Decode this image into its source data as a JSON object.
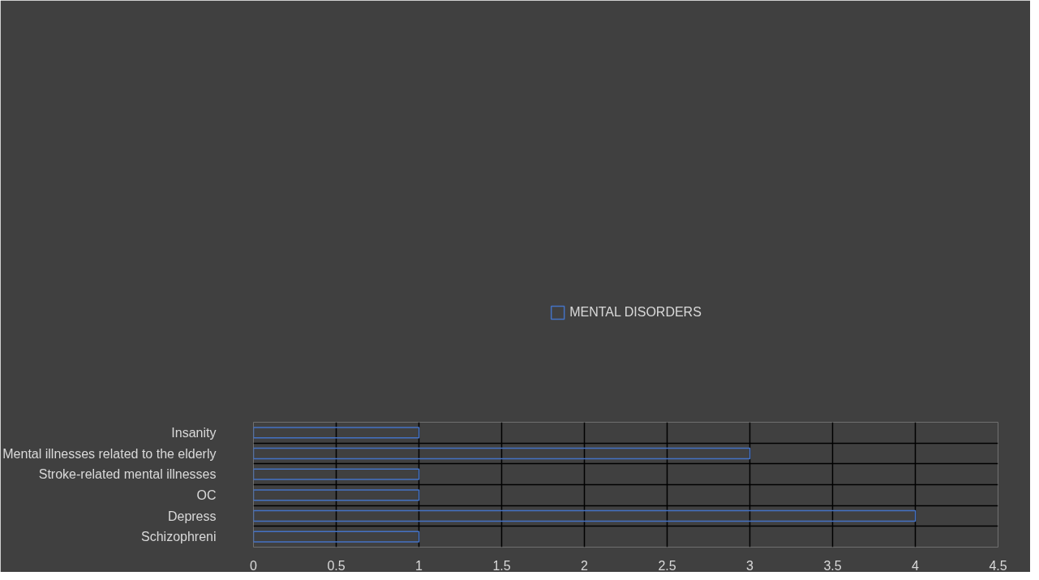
{
  "chart_data": {
    "type": "bar",
    "orientation": "horizontal",
    "categories": [
      "Insanity",
      "Mental illnesses related to the elderly",
      "Stroke-related mental illnesses",
      "OC",
      "Depress",
      "Schizophreni"
    ],
    "series": [
      {
        "name": "MENTAL DISORDERS",
        "color": "#4472c4",
        "values": [
          1,
          3,
          1,
          1,
          4,
          1
        ]
      }
    ],
    "xlim": [
      0,
      4.5
    ],
    "xticks": [
      0,
      0.5,
      1,
      1.5,
      2,
      2.5,
      3,
      3.5,
      4,
      4.5
    ],
    "grid": true,
    "legend": "top"
  }
}
